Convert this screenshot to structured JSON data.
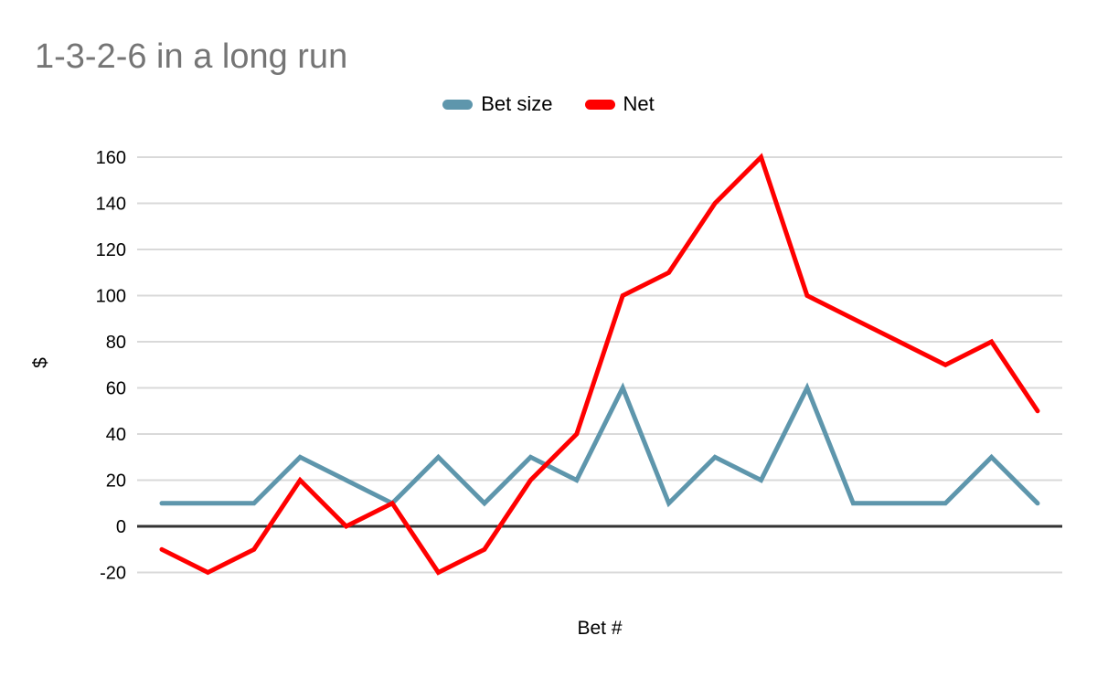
{
  "title": "1-3-2-6 in a long run",
  "colors": {
    "bet_size": "#5E96AC",
    "net": "#FF0000",
    "title_text": "#757575",
    "axis_text": "#000000",
    "gridline": "#D9D9D9",
    "zero_line": "#333333",
    "background": "#FFFFFF"
  },
  "legend": [
    {
      "label": "Bet size",
      "color": "#5E96AC"
    },
    {
      "label": "Net",
      "color": "#FF0000"
    }
  ],
  "y_axis": {
    "label": "$",
    "ticks": [
      160,
      140,
      120,
      100,
      80,
      60,
      40,
      20,
      0,
      -20
    ]
  },
  "x_axis": {
    "label": "Bet #"
  },
  "chart_data": {
    "type": "line",
    "title": "1-3-2-6 in a long run",
    "xlabel": "Bet #",
    "ylabel": "$",
    "x": [
      1,
      2,
      3,
      4,
      5,
      6,
      7,
      8,
      9,
      10,
      11,
      12,
      13,
      14,
      15,
      16,
      17,
      18,
      19,
      20
    ],
    "series": [
      {
        "name": "Bet size",
        "color": "#5E96AC",
        "values": [
          10,
          10,
          10,
          30,
          20,
          10,
          30,
          10,
          30,
          20,
          60,
          10,
          30,
          20,
          60,
          10,
          10,
          10,
          30,
          10
        ]
      },
      {
        "name": "Net",
        "color": "#FF0000",
        "values": [
          -10,
          -20,
          -10,
          20,
          0,
          10,
          -20,
          -10,
          20,
          40,
          100,
          110,
          140,
          160,
          100,
          90,
          80,
          70,
          80,
          50
        ]
      }
    ],
    "ylim": [
      -20,
      160
    ],
    "ytick_step": 20,
    "grid": true,
    "legend_position": "top",
    "x_tick_labels_shown": false
  }
}
